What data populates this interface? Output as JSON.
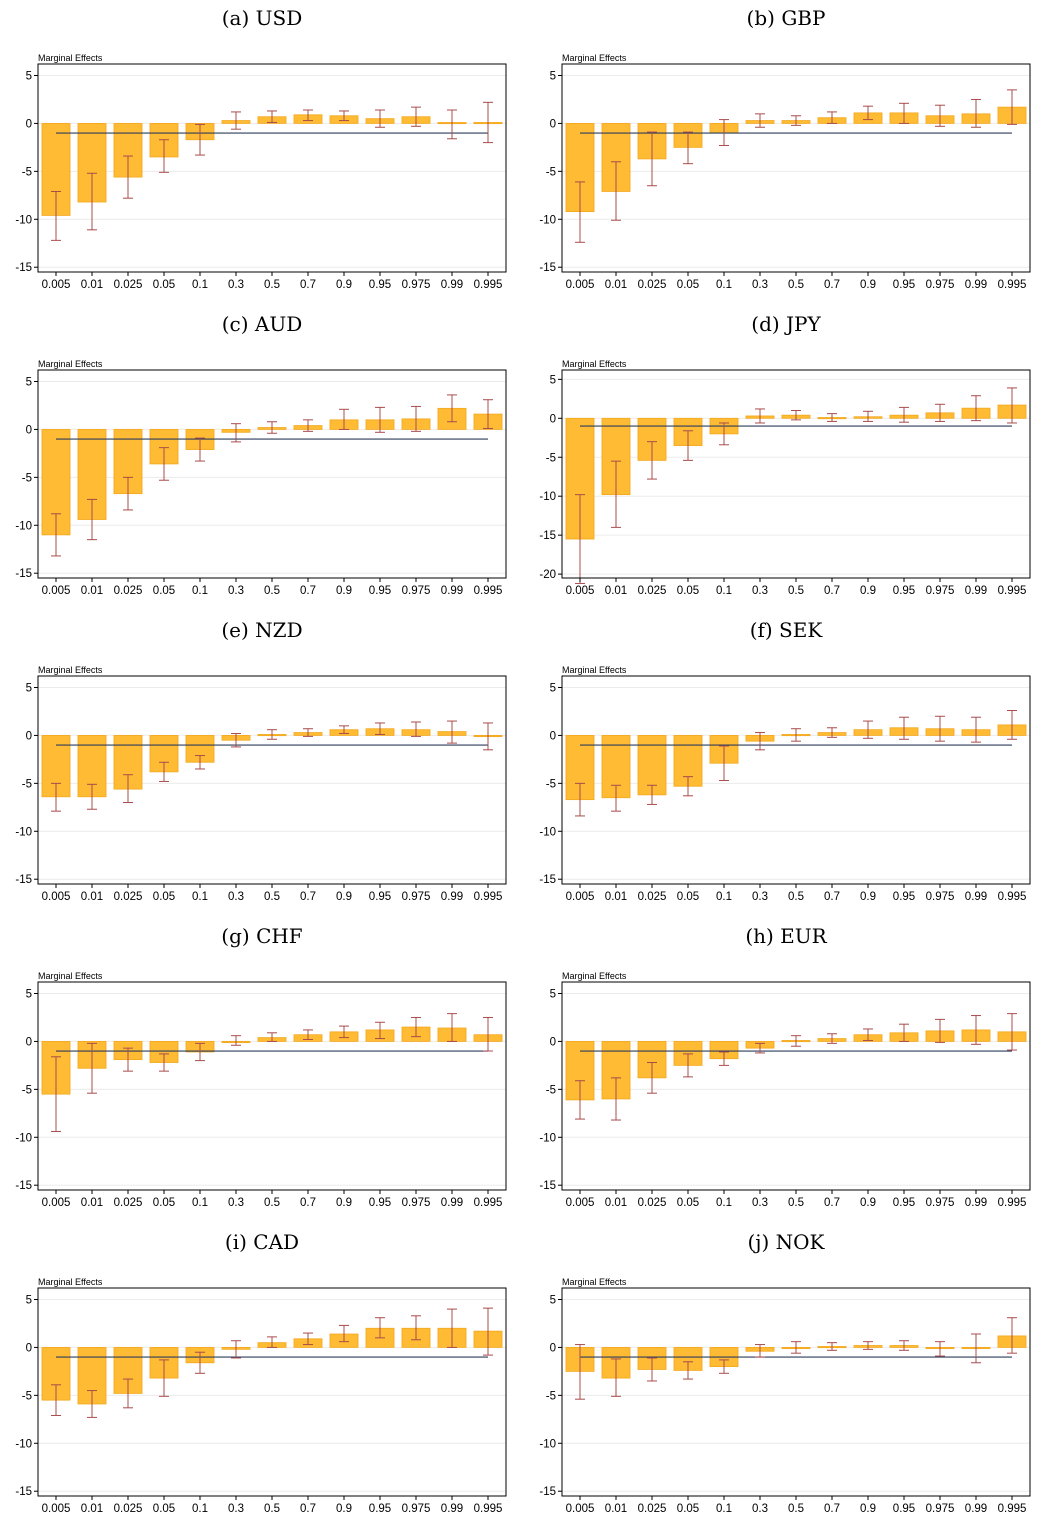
{
  "chart_data": [
    {
      "label": "(a) USD",
      "type": "bar",
      "ylabel": "Marginal Effects",
      "ylim": [
        -15,
        5
      ],
      "yticks": [
        5,
        0,
        -5,
        -10,
        -15
      ],
      "categories": [
        "0.005",
        "0.01",
        "0.025",
        "0.05",
        "0.1",
        "0.3",
        "0.5",
        "0.7",
        "0.9",
        "0.95",
        "0.975",
        "0.99",
        "0.995"
      ],
      "values": [
        -9.6,
        -8.2,
        -5.6,
        -3.5,
        -1.7,
        0.3,
        0.7,
        0.9,
        0.8,
        0.5,
        0.7,
        0.1,
        0.1
      ],
      "ci_low": [
        -12.2,
        -11.1,
        -7.8,
        -5.1,
        -3.3,
        -0.6,
        0.1,
        0.3,
        0.3,
        -0.4,
        -0.3,
        -1.6,
        -2.0
      ],
      "ci_high": [
        -7.1,
        -5.2,
        -3.4,
        -1.7,
        -0.1,
        1.2,
        1.3,
        1.4,
        1.3,
        1.4,
        1.7,
        1.4,
        2.2
      ],
      "reference": -1
    },
    {
      "label": "(b) GBP",
      "type": "bar",
      "ylabel": "Marginal Effects",
      "ylim": [
        -15,
        5
      ],
      "yticks": [
        5,
        0,
        -5,
        -10,
        -15
      ],
      "categories": [
        "0.005",
        "0.01",
        "0.025",
        "0.05",
        "0.1",
        "0.3",
        "0.5",
        "0.7",
        "0.9",
        "0.95",
        "0.975",
        "0.99",
        "0.995"
      ],
      "values": [
        -9.2,
        -7.1,
        -3.7,
        -2.5,
        -1.0,
        0.3,
        0.3,
        0.6,
        1.1,
        1.1,
        0.8,
        1.0,
        1.7
      ],
      "ci_low": [
        -12.4,
        -10.1,
        -6.5,
        -4.2,
        -2.3,
        -0.4,
        -0.2,
        0.0,
        0.4,
        0.0,
        -0.3,
        -0.4,
        -0.1
      ],
      "ci_high": [
        -6.1,
        -4.0,
        -0.9,
        -0.9,
        0.4,
        1.0,
        0.8,
        1.2,
        1.8,
        2.1,
        1.9,
        2.5,
        3.5
      ],
      "reference": -1
    },
    {
      "label": "(c) AUD",
      "type": "bar",
      "ylabel": "Marginal Effects",
      "ylim": [
        -15,
        5
      ],
      "yticks": [
        5,
        0,
        -5,
        -10,
        -15
      ],
      "categories": [
        "0.005",
        "0.01",
        "0.025",
        "0.05",
        "0.1",
        "0.3",
        "0.5",
        "0.7",
        "0.9",
        "0.95",
        "0.975",
        "0.99",
        "0.995"
      ],
      "values": [
        -11.0,
        -9.4,
        -6.7,
        -3.6,
        -2.1,
        -0.3,
        0.2,
        0.4,
        1.0,
        1.0,
        1.1,
        2.2,
        1.6
      ],
      "ci_low": [
        -13.2,
        -11.5,
        -8.4,
        -5.3,
        -3.3,
        -1.3,
        -0.4,
        -0.2,
        0.0,
        -0.3,
        -0.2,
        0.8,
        0.1
      ],
      "ci_high": [
        -8.8,
        -7.3,
        -5.0,
        -1.9,
        -0.9,
        0.6,
        0.8,
        1.0,
        2.1,
        2.3,
        2.4,
        3.6,
        3.1
      ],
      "reference": -1
    },
    {
      "label": "(d) JPY",
      "type": "bar",
      "ylabel": "Marginal Effects",
      "ylim": [
        -20,
        5
      ],
      "yticks": [
        5,
        0,
        -5,
        -10,
        -15,
        -20
      ],
      "categories": [
        "0.005",
        "0.01",
        "0.025",
        "0.05",
        "0.1",
        "0.3",
        "0.5",
        "0.7",
        "0.9",
        "0.95",
        "0.975",
        "0.99",
        "0.995"
      ],
      "values": [
        -15.5,
        -9.8,
        -5.4,
        -3.5,
        -2.0,
        0.3,
        0.4,
        0.1,
        0.2,
        0.4,
        0.7,
        1.3,
        1.7
      ],
      "ci_low": [
        -21.2,
        -14.0,
        -7.8,
        -5.4,
        -3.4,
        -0.6,
        -0.2,
        -0.4,
        -0.4,
        -0.5,
        -0.4,
        -0.3,
        -0.6
      ],
      "ci_high": [
        -9.8,
        -5.5,
        -3.0,
        -1.6,
        -0.6,
        1.2,
        1.0,
        0.6,
        0.9,
        1.4,
        1.8,
        2.9,
        3.9
      ],
      "reference": -1
    },
    {
      "label": "(e) NZD",
      "type": "bar",
      "ylabel": "Marginal Effects",
      "ylim": [
        -15,
        5
      ],
      "yticks": [
        5,
        0,
        -5,
        -10,
        -15
      ],
      "categories": [
        "0.005",
        "0.01",
        "0.025",
        "0.05",
        "0.1",
        "0.3",
        "0.5",
        "0.7",
        "0.9",
        "0.95",
        "0.975",
        "0.99",
        "0.995"
      ],
      "values": [
        -6.4,
        -6.4,
        -5.6,
        -3.8,
        -2.8,
        -0.5,
        0.1,
        0.3,
        0.6,
        0.7,
        0.6,
        0.4,
        -0.1
      ],
      "ci_low": [
        -7.9,
        -7.7,
        -7.0,
        -4.8,
        -3.5,
        -1.2,
        -0.4,
        -0.1,
        0.2,
        0.1,
        -0.1,
        -0.8,
        -1.5
      ],
      "ci_high": [
        -5.0,
        -5.1,
        -4.1,
        -2.8,
        -2.1,
        0.2,
        0.6,
        0.7,
        1.0,
        1.3,
        1.4,
        1.5,
        1.3
      ],
      "reference": -1
    },
    {
      "label": "(f) SEK",
      "type": "bar",
      "ylabel": "Marginal Effects",
      "ylim": [
        -15,
        5
      ],
      "yticks": [
        5,
        0,
        -5,
        -10,
        -15
      ],
      "categories": [
        "0.005",
        "0.01",
        "0.025",
        "0.05",
        "0.1",
        "0.3",
        "0.5",
        "0.7",
        "0.9",
        "0.95",
        "0.975",
        "0.99",
        "0.995"
      ],
      "values": [
        -6.7,
        -6.5,
        -6.2,
        -5.3,
        -2.9,
        -0.6,
        0.1,
        0.3,
        0.6,
        0.8,
        0.7,
        0.6,
        1.1
      ],
      "ci_low": [
        -8.4,
        -7.9,
        -7.2,
        -6.3,
        -4.7,
        -1.5,
        -0.6,
        -0.2,
        -0.3,
        -0.4,
        -0.6,
        -0.7,
        -0.4
      ],
      "ci_high": [
        -5.0,
        -5.2,
        -5.2,
        -4.3,
        -1.1,
        0.3,
        0.7,
        0.8,
        1.5,
        1.9,
        2.0,
        1.9,
        2.6
      ],
      "reference": -1
    },
    {
      "label": "(g) CHF",
      "type": "bar",
      "ylabel": "Marginal Effects",
      "ylim": [
        -15,
        5
      ],
      "yticks": [
        5,
        0,
        -5,
        -10,
        -15
      ],
      "categories": [
        "0.005",
        "0.01",
        "0.025",
        "0.05",
        "0.1",
        "0.3",
        "0.5",
        "0.7",
        "0.9",
        "0.95",
        "0.975",
        "0.99",
        "0.995"
      ],
      "values": [
        -5.5,
        -2.8,
        -1.9,
        -2.2,
        -1.1,
        0.0,
        0.4,
        0.7,
        1.0,
        1.2,
        1.5,
        1.4,
        0.7
      ],
      "ci_low": [
        -9.4,
        -5.4,
        -3.1,
        -3.1,
        -2.0,
        -0.4,
        0.0,
        0.2,
        0.4,
        0.3,
        0.5,
        0.0,
        -1.0
      ],
      "ci_high": [
        -1.6,
        -0.2,
        -0.7,
        -1.3,
        -0.2,
        0.6,
        0.9,
        1.2,
        1.6,
        2.0,
        2.5,
        2.9,
        2.5
      ],
      "reference": -1
    },
    {
      "label": "(h) EUR",
      "type": "bar",
      "ylabel": "Marginal Effects",
      "ylim": [
        -15,
        5
      ],
      "yticks": [
        5,
        0,
        -5,
        -10,
        -15
      ],
      "categories": [
        "0.005",
        "0.01",
        "0.025",
        "0.05",
        "0.1",
        "0.3",
        "0.5",
        "0.7",
        "0.9",
        "0.95",
        "0.975",
        "0.99",
        "0.995"
      ],
      "values": [
        -6.1,
        -6.0,
        -3.8,
        -2.5,
        -1.8,
        -0.7,
        0.1,
        0.3,
        0.7,
        0.9,
        1.1,
        1.2,
        1.0
      ],
      "ci_low": [
        -8.1,
        -8.2,
        -5.4,
        -3.7,
        -2.5,
        -1.2,
        -0.5,
        -0.2,
        0.1,
        0.0,
        -0.1,
        -0.3,
        -0.9
      ],
      "ci_high": [
        -4.1,
        -3.8,
        -2.2,
        -1.3,
        -1.1,
        -0.2,
        0.6,
        0.8,
        1.3,
        1.8,
        2.3,
        2.7,
        2.9
      ],
      "reference": -1
    },
    {
      "label": "(i) CAD",
      "type": "bar",
      "ylabel": "Marginal Effects",
      "ylim": [
        -15,
        5
      ],
      "yticks": [
        5,
        0,
        -5,
        -10,
        -15
      ],
      "categories": [
        "0.005",
        "0.01",
        "0.025",
        "0.05",
        "0.1",
        "0.3",
        "0.5",
        "0.7",
        "0.9",
        "0.95",
        "0.975",
        "0.99",
        "0.995"
      ],
      "values": [
        -5.5,
        -5.9,
        -4.8,
        -3.2,
        -1.6,
        -0.2,
        0.5,
        0.9,
        1.4,
        2.0,
        2.0,
        2.0,
        1.7
      ],
      "ci_low": [
        -7.1,
        -7.3,
        -6.3,
        -5.1,
        -2.7,
        -1.1,
        0.0,
        0.3,
        0.6,
        1.0,
        0.8,
        0.0,
        -0.8
      ],
      "ci_high": [
        -3.9,
        -4.5,
        -3.3,
        -1.3,
        -0.5,
        0.7,
        1.1,
        1.5,
        2.3,
        3.1,
        3.3,
        4.0,
        4.1
      ],
      "reference": -1
    },
    {
      "label": "(j) NOK",
      "type": "bar",
      "ylabel": "Marginal Effects",
      "ylim": [
        -15,
        5
      ],
      "yticks": [
        5,
        0,
        -5,
        -10,
        -15
      ],
      "categories": [
        "0.005",
        "0.01",
        "0.025",
        "0.05",
        "0.1",
        "0.3",
        "0.5",
        "0.7",
        "0.9",
        "0.95",
        "0.975",
        "0.99",
        "0.995"
      ],
      "values": [
        -2.5,
        -3.2,
        -2.3,
        -2.4,
        -2.0,
        -0.4,
        0.0,
        0.1,
        0.2,
        0.2,
        -0.1,
        -0.1,
        1.2
      ],
      "ci_low": [
        -5.4,
        -5.1,
        -3.5,
        -3.3,
        -2.7,
        -1.0,
        -0.6,
        -0.3,
        -0.2,
        -0.3,
        -0.9,
        -1.6,
        -0.6
      ],
      "ci_high": [
        0.3,
        -1.2,
        -1.1,
        -1.5,
        -1.3,
        0.3,
        0.6,
        0.5,
        0.6,
        0.7,
        0.6,
        1.4,
        3.1
      ],
      "reference": -1
    }
  ]
}
